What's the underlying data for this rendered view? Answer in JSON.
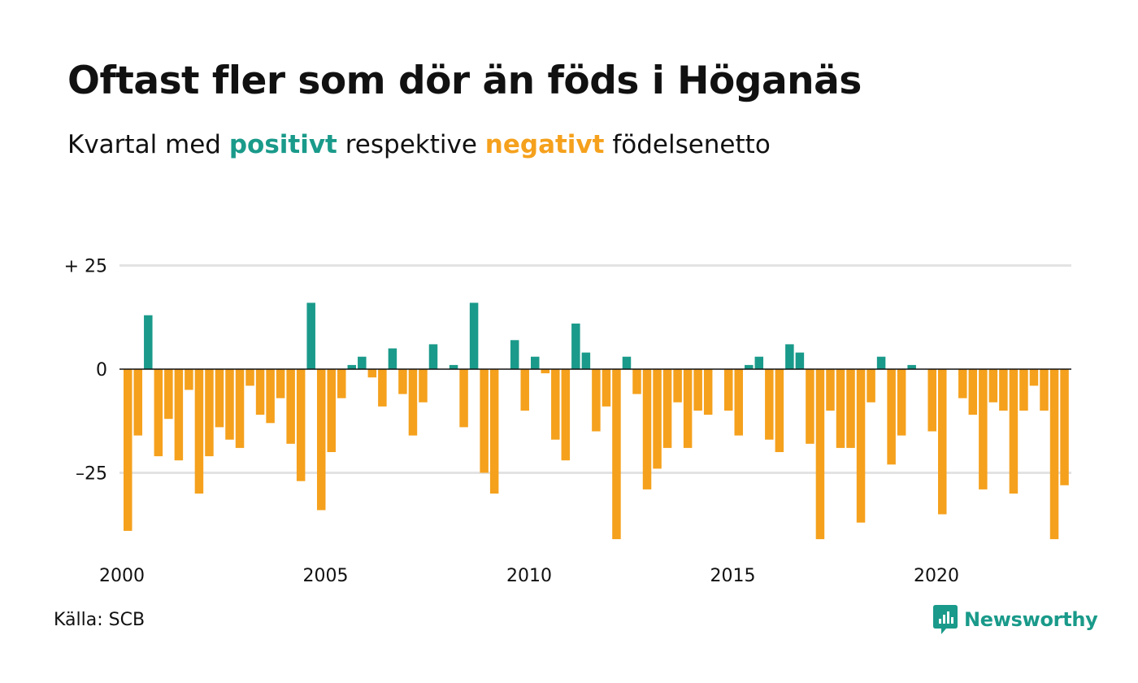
{
  "title": "Oftast fler som dör än föds i Höganäs",
  "subtitle": {
    "prefix": "Kvartal med ",
    "positive_word": "positivt",
    "middle": " respektive ",
    "negative_word": "negativt",
    "suffix": " födelsenetto"
  },
  "colors": {
    "positive": "#1a9a8a",
    "negative": "#f5a11d",
    "grid": "#e3e3e3",
    "zero": "#111111",
    "brand": "#1a9a8a"
  },
  "source": "Källa: SCB",
  "brand": {
    "name": "Newsworthy",
    "icon": "newsworthy-chart-bubble-icon"
  },
  "chart_data": {
    "type": "bar",
    "title": "Oftast fler som dör än föds i Höganäs",
    "subtitle": "Kvartal med positivt respektive negativt födelsenetto",
    "ylim": [
      -42,
      26
    ],
    "y_ticks": [
      25,
      0,
      -25
    ],
    "y_tick_labels": [
      "+ 25",
      "0",
      "–25"
    ],
    "x_ticks": [
      2000,
      2005,
      2010,
      2015,
      2020
    ],
    "x_tick_labels": [
      "2000",
      "2005",
      "2010",
      "2015",
      "2020"
    ],
    "grid": true,
    "series": [
      {
        "start": "2000Q1",
        "quarters_per_year": 4,
        "values": [
          -39,
          -16,
          13,
          -21,
          -12,
          -22,
          -5,
          -30,
          -21,
          -14,
          -17,
          -19,
          -4,
          -11,
          -13,
          -7,
          -18,
          -27,
          16,
          -34,
          -20,
          -7,
          1,
          3,
          -2,
          -9,
          5,
          -6,
          -16,
          -8,
          6,
          0,
          1,
          -14,
          16,
          -25,
          -30,
          0,
          7,
          -10,
          3,
          -1,
          -17,
          -22,
          11,
          4,
          -15,
          -9,
          -41,
          3,
          -6,
          -29,
          -24,
          -19,
          -8,
          -19,
          -10,
          -11,
          0,
          -10,
          -16,
          1,
          3,
          -17,
          -20,
          6,
          4,
          -18,
          -41,
          -10,
          -19,
          -19,
          -37,
          -8,
          3,
          -23,
          -16,
          1,
          0,
          -15,
          -35,
          0,
          -7,
          -11,
          -29,
          -8,
          -10,
          -30,
          -10,
          -4,
          -10,
          -41,
          -28
        ]
      }
    ]
  }
}
